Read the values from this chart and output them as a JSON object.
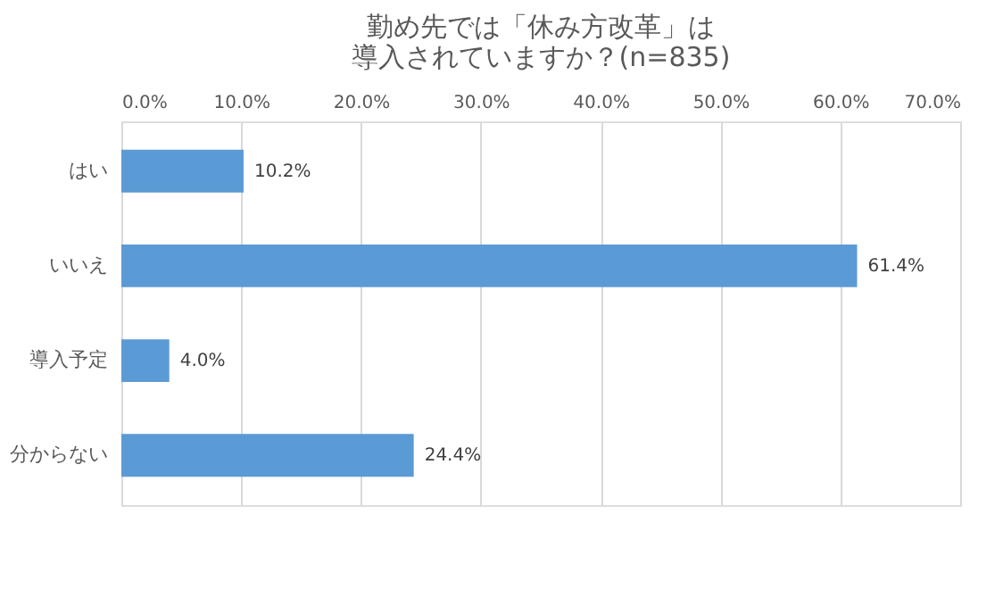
{
  "chart_data": {
    "type": "bar",
    "orientation": "horizontal",
    "title": [
      "勤め先では「休み方改革」は",
      "導入されていますか？(n=835)"
    ],
    "categories": [
      "はい",
      "いいえ",
      "導入予定",
      "分からない"
    ],
    "values": [
      10.2,
      61.4,
      4.0,
      24.4
    ],
    "value_labels": [
      "10.2%",
      "61.4%",
      "4.0%",
      "24.4%"
    ],
    "color": "#5b9bd5",
    "xlim": [
      0,
      70
    ],
    "xticks": [
      {
        "value": 0,
        "label": "0.0%"
      },
      {
        "value": 10,
        "label": "10.0%"
      },
      {
        "value": 20,
        "label": "20.0%"
      },
      {
        "value": 30,
        "label": "30.0%"
      },
      {
        "value": 40,
        "label": "40.0%"
      },
      {
        "value": 50,
        "label": "50.0%"
      },
      {
        "value": 60,
        "label": "60.0%"
      },
      {
        "value": 70,
        "label": "70.0%"
      }
    ],
    "grid": "x"
  }
}
